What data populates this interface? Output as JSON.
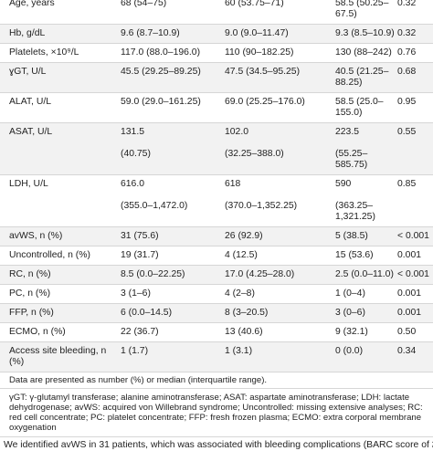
{
  "table": {
    "rows": [
      {
        "label": "Age, years",
        "c1": "68 (54–75)",
        "c2": "60 (53.75–71)",
        "c3": "58.5 (50.25–67.5)",
        "p": "0.32"
      },
      {
        "label": "Hb, g/dL",
        "c1": "9.6 (8.7–10.9)",
        "c2": "9.0 (9.0–11.47)",
        "c3": "9.3 (8.5–10.9)",
        "p": "0.32"
      },
      {
        "label": "Platelets, ×10⁹/L",
        "c1": "117.0 (88.0–196.0)",
        "c2": "110 (90–182.25)",
        "c3": "130 (88–242)",
        "p": "0.76"
      },
      {
        "label": "ɣGT, U/L",
        "c1": "45.5 (29.25–89.25)",
        "c2": "47.5 (34.5–95.25)",
        "c3": "40.5 (21.25–88.25)",
        "p": "0.68"
      },
      {
        "label": "ALAT, U/L",
        "c1": "59.0 (29.0–161.25)",
        "c2": "69.0 (25.25–176.0)",
        "c3": "58.5 (25.0–155.0)",
        "p": "0.95"
      },
      {
        "label": "ASAT, U/L",
        "c1": "131.5\n\n(40.75)",
        "c2": "102.0\n\n(32.25–388.0)",
        "c3": "223.5\n\n(55.25–585.75)",
        "p": "0.55"
      },
      {
        "label": "LDH, U/L",
        "c1": "616.0\n\n(355.0–1,472.0)",
        "c2": "618\n\n(370.0–1,352.25)",
        "c3": "590\n\n(363.25–1,321.25)",
        "p": "0.85"
      },
      {
        "label": "avWS, n (%)",
        "c1": "31 (75.6)",
        "c2": "26 (92.9)",
        "c3": "5 (38.5)",
        "p": "< 0.001"
      },
      {
        "label": "Uncontrolled, n (%)",
        "c1": "19 (31.7)",
        "c2": "4 (12.5)",
        "c3": "15 (53.6)",
        "p": "0.001"
      },
      {
        "label": "RC, n (%)",
        "c1": "8.5 (0.0–22.25)",
        "c2": "17.0 (4.25–28.0)",
        "c3": "2.5 (0.0–11.0)",
        "p": "< 0.001"
      },
      {
        "label": "PC, n (%)",
        "c1": "3 (1–6)",
        "c2": "4 (2–8)",
        "c3": "1 (0–4)",
        "p": "0.001"
      },
      {
        "label": "FFP, n (%)",
        "c1": "6 (0.0–14.5)",
        "c2": "8 (3–20.5)",
        "c3": "3 (0–6)",
        "p": "0.001"
      },
      {
        "label": "ECMO, n (%)",
        "c1": "22 (36.7)",
        "c2": "13 (40.6)",
        "c3": "9 (32.1)",
        "p": "0.50"
      },
      {
        "label": "Access site bleeding, n (%)",
        "c1": "1 (1.7)",
        "c2": "1 (3.1)",
        "c3": "0 (0.0)",
        "p": "0.34"
      }
    ]
  },
  "footnotes": {
    "summary": "Data are presented as number (%) or median (interquartile range).",
    "abbreviations": "γGT: γ-glutamyl transferase; alanine aminotransferase; ASAT: aspartate aminotransferase; LDH: lactate dehydrogenase; avWS: acquired von Willebrand syndrome; Uncontrolled: missing extensive analyses; RC: red cell concentrate; PC: platelet concentrate; FFP: fresh frozen plasma; ECMO: extra corporal membrane oxygenation"
  },
  "body_text": "We identified avWS in 31 patients, which was associated with bleeding complications (BARC score of ≥"
}
